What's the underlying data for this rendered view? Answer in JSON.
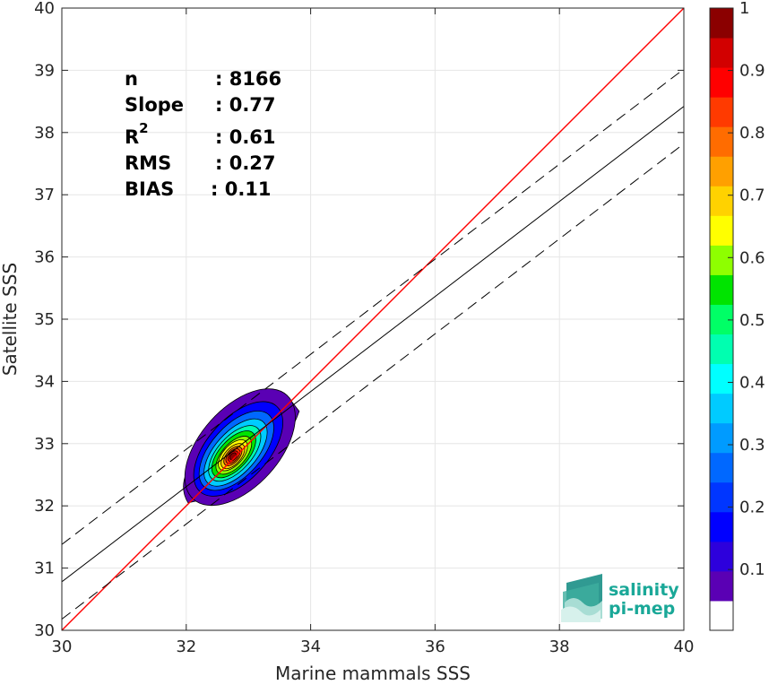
{
  "chart_data": {
    "type": "heatmap",
    "xlabel": "Marine mammals SSS",
    "ylabel": "Satellite SSS",
    "xlim": [
      30,
      40
    ],
    "ylim": [
      30,
      40
    ],
    "xticks": [
      30,
      32,
      34,
      36,
      38,
      40
    ],
    "yticks": [
      30,
      31,
      32,
      33,
      34,
      35,
      36,
      37,
      38,
      39,
      40
    ],
    "grid": true,
    "density_peak": {
      "x": 32.75,
      "y": 32.8
    },
    "lines": [
      {
        "kind": "identity",
        "color": "#ff0000",
        "style": "solid",
        "points": [
          [
            30,
            30
          ],
          [
            40,
            40
          ]
        ]
      },
      {
        "kind": "regression",
        "color": "#000000",
        "style": "solid",
        "points": [
          [
            30,
            30.78
          ],
          [
            40,
            38.42
          ]
        ]
      },
      {
        "kind": "regression-upper",
        "color": "#000000",
        "style": "dashed",
        "points": [
          [
            30,
            31.38
          ],
          [
            40,
            39.02
          ]
        ]
      },
      {
        "kind": "regression-lower",
        "color": "#000000",
        "style": "dashed",
        "points": [
          [
            30,
            30.18
          ],
          [
            40,
            37.82
          ]
        ]
      }
    ],
    "stats": [
      {
        "label": "n",
        "value": ": 8166"
      },
      {
        "label": "Slope",
        "value": ": 0.77"
      },
      {
        "label": "R",
        "sup": "2",
        "value": ": 0.61"
      },
      {
        "label": "RMS",
        "value": ": 0.27"
      },
      {
        "label": "BIAS",
        "value": ": 0.11"
      }
    ],
    "colorbar": {
      "range": [
        0,
        1
      ],
      "ticks": [
        0.1,
        0.2,
        0.3,
        0.4,
        0.5,
        0.6,
        0.7,
        0.8,
        0.9,
        1
      ],
      "tick_labels": [
        "0.1",
        "0.2",
        "0.3",
        "0.4",
        "0.5",
        "0.6",
        "0.7",
        "0.8",
        "0.9",
        "1"
      ],
      "colors": [
        "#ffffff",
        "#5a00b4",
        "#2d00dc",
        "#0000ff",
        "#0036ff",
        "#0068ff",
        "#009bff",
        "#00cbff",
        "#00ffff",
        "#00ffb0",
        "#00ff66",
        "#00e400",
        "#8eff00",
        "#ffff00",
        "#ffd200",
        "#ffa000",
        "#ff6c00",
        "#ff3a00",
        "#ff0000",
        "#d20000",
        "#8b0000"
      ]
    }
  },
  "logo": {
    "line1": "salinity",
    "line2": "pi-mep"
  }
}
